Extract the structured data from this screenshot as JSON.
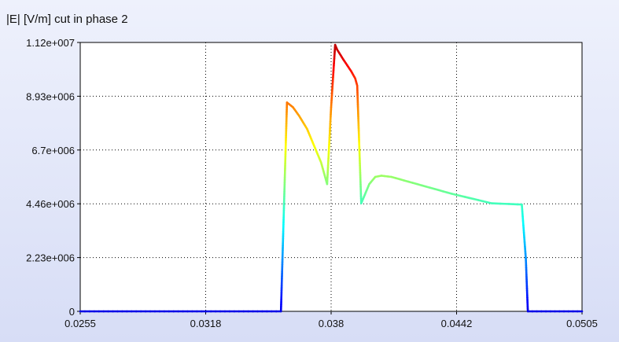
{
  "chart_data": {
    "type": "line",
    "title": "|E| [V/m] cut in phase 2",
    "xlabel": "",
    "ylabel": "",
    "xlim": [
      0.0255,
      0.0505
    ],
    "ylim": [
      0,
      11200000
    ],
    "x_ticks": [
      "0.0255",
      "0.0318",
      "0.038",
      "0.0442",
      "0.0505"
    ],
    "y_ticks": [
      "0",
      "2.23e+006",
      "4.46e+006",
      "6.7e+006",
      "8.93e+006",
      "1.12e+007"
    ],
    "grid": true,
    "colormap": "jet (color follows value)",
    "series": [
      {
        "x": [
          0.0255,
          0.0355,
          0.0358,
          0.0361,
          0.0364,
          0.0368,
          0.0371,
          0.0375,
          0.0378,
          0.038,
          0.0382,
          0.0383,
          0.0386,
          0.039,
          0.0392,
          0.0393,
          0.0395,
          0.0399,
          0.0402,
          0.0405,
          0.041,
          0.0425,
          0.044,
          0.046,
          0.0475,
          0.0477,
          0.0478,
          0.0505
        ],
        "y": [
          0,
          0,
          8700000,
          8500000,
          8150000,
          7600000,
          7000000,
          6200000,
          5300000,
          8500000,
          11100000,
          10900000,
          10500000,
          10000000,
          9700000,
          9400000,
          4500000,
          5300000,
          5600000,
          5650000,
          5600000,
          5250000,
          4900000,
          4500000,
          4450000,
          2200000,
          0,
          0
        ]
      }
    ]
  }
}
